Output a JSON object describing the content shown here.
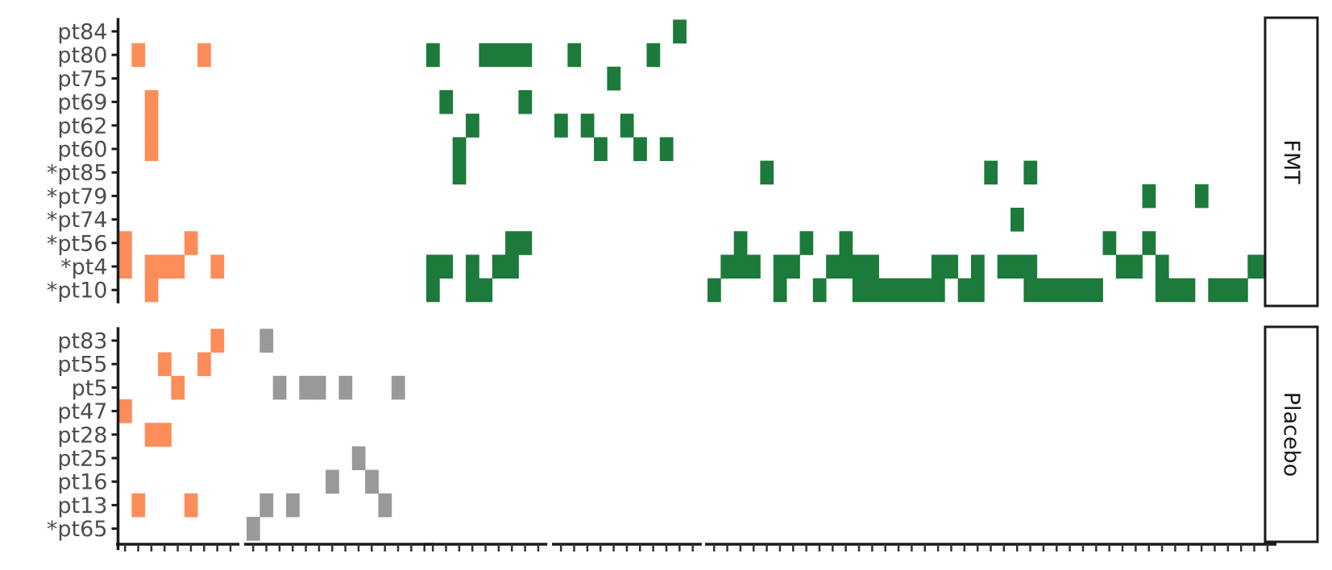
{
  "chart_data": {
    "type": "heatmap",
    "title": "",
    "xlabel": "",
    "ylabel": "",
    "colors": {
      "orange": "#FC8D59",
      "grey": "#999999",
      "green": "#1C7A3A",
      "axis": "#1a1a1a",
      "label": "#4d4d4d"
    },
    "x_blocks": [
      {
        "name": "block1",
        "columns": 9
      },
      {
        "name": "block2",
        "columns": 14
      },
      {
        "name": "block3",
        "columns": 9
      },
      {
        "name": "block4",
        "columns": 11
      },
      {
        "name": "block5",
        "columns": 43
      }
    ],
    "facets": [
      {
        "label": "FMT",
        "rows": [
          "pt84",
          "pt80",
          "pt75",
          "pt69",
          "pt62",
          "pt60",
          "*pt85",
          "*pt79",
          "*pt74",
          "*pt56",
          "*pt4",
          "*pt10"
        ],
        "cells": [
          {
            "row": "pt84",
            "block": 4,
            "col": 9,
            "color": "green"
          },
          {
            "row": "pt80",
            "block": 1,
            "col": 1,
            "color": "orange"
          },
          {
            "row": "pt80",
            "block": 1,
            "col": 6,
            "color": "orange"
          },
          {
            "row": "pt80",
            "block": 3,
            "col": 0,
            "color": "green"
          },
          {
            "row": "pt80",
            "block": 3,
            "col": 4,
            "color": "green"
          },
          {
            "row": "pt80",
            "block": 3,
            "col": 5,
            "color": "green"
          },
          {
            "row": "pt80",
            "block": 3,
            "col": 6,
            "color": "green"
          },
          {
            "row": "pt80",
            "block": 3,
            "col": 7,
            "color": "green"
          },
          {
            "row": "pt80",
            "block": 4,
            "col": 1,
            "color": "green"
          },
          {
            "row": "pt80",
            "block": 4,
            "col": 7,
            "color": "green"
          },
          {
            "row": "pt75",
            "block": 4,
            "col": 4,
            "color": "green"
          },
          {
            "row": "pt69",
            "block": 1,
            "col": 2,
            "color": "orange"
          },
          {
            "row": "pt69",
            "block": 3,
            "col": 1,
            "color": "green"
          },
          {
            "row": "pt69",
            "block": 3,
            "col": 7,
            "color": "green"
          },
          {
            "row": "pt62",
            "block": 1,
            "col": 2,
            "color": "orange"
          },
          {
            "row": "pt62",
            "block": 3,
            "col": 3,
            "color": "green"
          },
          {
            "row": "pt62",
            "block": 4,
            "col": 0,
            "color": "green"
          },
          {
            "row": "pt62",
            "block": 4,
            "col": 2,
            "color": "green"
          },
          {
            "row": "pt62",
            "block": 4,
            "col": 5,
            "color": "green"
          },
          {
            "row": "pt60",
            "block": 1,
            "col": 2,
            "color": "orange"
          },
          {
            "row": "pt60",
            "block": 3,
            "col": 2,
            "color": "green"
          },
          {
            "row": "pt60",
            "block": 4,
            "col": 3,
            "color": "green"
          },
          {
            "row": "pt60",
            "block": 4,
            "col": 6,
            "color": "green"
          },
          {
            "row": "pt60",
            "block": 4,
            "col": 8,
            "color": "green"
          },
          {
            "row": "*pt85",
            "block": 3,
            "col": 2,
            "color": "green"
          },
          {
            "row": "*pt85",
            "block": 5,
            "col": 4,
            "color": "green"
          },
          {
            "row": "*pt85",
            "block": 5,
            "col": 21,
            "color": "green"
          },
          {
            "row": "*pt85",
            "block": 5,
            "col": 24,
            "color": "green"
          },
          {
            "row": "*pt79",
            "block": 5,
            "col": 33,
            "color": "green"
          },
          {
            "row": "*pt79",
            "block": 5,
            "col": 37,
            "color": "green"
          },
          {
            "row": "*pt74",
            "block": 5,
            "col": 23,
            "color": "green"
          },
          {
            "row": "*pt56",
            "block": 1,
            "col": 0,
            "color": "orange"
          },
          {
            "row": "*pt56",
            "block": 1,
            "col": 5,
            "color": "orange"
          },
          {
            "row": "*pt56",
            "block": 3,
            "col": 6,
            "color": "green"
          },
          {
            "row": "*pt56",
            "block": 3,
            "col": 7,
            "color": "green"
          },
          {
            "row": "*pt56",
            "block": 5,
            "col": 2,
            "color": "green"
          },
          {
            "row": "*pt56",
            "block": 5,
            "col": 7,
            "color": "green"
          },
          {
            "row": "*pt56",
            "block": 5,
            "col": 10,
            "color": "green"
          },
          {
            "row": "*pt56",
            "block": 5,
            "col": 30,
            "color": "green"
          },
          {
            "row": "*pt56",
            "block": 5,
            "col": 33,
            "color": "green"
          },
          {
            "row": "*pt4",
            "block": 1,
            "col": 0,
            "color": "orange"
          },
          {
            "row": "*pt4",
            "block": 1,
            "col": 2,
            "color": "orange"
          },
          {
            "row": "*pt4",
            "block": 1,
            "col": 3,
            "color": "orange"
          },
          {
            "row": "*pt4",
            "block": 1,
            "col": 4,
            "color": "orange"
          },
          {
            "row": "*pt4",
            "block": 1,
            "col": 7,
            "color": "orange"
          },
          {
            "row": "*pt4",
            "block": 3,
            "col": 0,
            "color": "green"
          },
          {
            "row": "*pt4",
            "block": 3,
            "col": 1,
            "color": "green"
          },
          {
            "row": "*pt4",
            "block": 3,
            "col": 3,
            "color": "green"
          },
          {
            "row": "*pt4",
            "block": 3,
            "col": 5,
            "color": "green"
          },
          {
            "row": "*pt4",
            "block": 3,
            "col": 6,
            "color": "green"
          },
          {
            "row": "*pt4",
            "block": 5,
            "col": 1,
            "color": "green"
          },
          {
            "row": "*pt4",
            "block": 5,
            "col": 2,
            "color": "green"
          },
          {
            "row": "*pt4",
            "block": 5,
            "col": 3,
            "color": "green"
          },
          {
            "row": "*pt4",
            "block": 5,
            "col": 5,
            "color": "green"
          },
          {
            "row": "*pt4",
            "block": 5,
            "col": 6,
            "color": "green"
          },
          {
            "row": "*pt4",
            "block": 5,
            "col": 9,
            "color": "green"
          },
          {
            "row": "*pt4",
            "block": 5,
            "col": 10,
            "color": "green"
          },
          {
            "row": "*pt4",
            "block": 5,
            "col": 11,
            "color": "green"
          },
          {
            "row": "*pt4",
            "block": 5,
            "col": 12,
            "color": "green"
          },
          {
            "row": "*pt4",
            "block": 5,
            "col": 17,
            "color": "green"
          },
          {
            "row": "*pt4",
            "block": 5,
            "col": 18,
            "color": "green"
          },
          {
            "row": "*pt4",
            "block": 5,
            "col": 20,
            "color": "green"
          },
          {
            "row": "*pt4",
            "block": 5,
            "col": 22,
            "color": "green"
          },
          {
            "row": "*pt4",
            "block": 5,
            "col": 23,
            "color": "green"
          },
          {
            "row": "*pt4",
            "block": 5,
            "col": 24,
            "color": "green"
          },
          {
            "row": "*pt4",
            "block": 5,
            "col": 31,
            "color": "green"
          },
          {
            "row": "*pt4",
            "block": 5,
            "col": 32,
            "color": "green"
          },
          {
            "row": "*pt4",
            "block": 5,
            "col": 34,
            "color": "green"
          },
          {
            "row": "*pt4",
            "block": 5,
            "col": 41,
            "color": "green"
          },
          {
            "row": "*pt4",
            "block": 5,
            "col": 42,
            "color": "green"
          },
          {
            "row": "*pt10",
            "block": 1,
            "col": 2,
            "color": "orange"
          },
          {
            "row": "*pt10",
            "block": 3,
            "col": 0,
            "color": "green"
          },
          {
            "row": "*pt10",
            "block": 3,
            "col": 3,
            "color": "green"
          },
          {
            "row": "*pt10",
            "block": 3,
            "col": 4,
            "color": "green"
          },
          {
            "row": "*pt10",
            "block": 5,
            "col": 0,
            "color": "green"
          },
          {
            "row": "*pt10",
            "block": 5,
            "col": 5,
            "color": "green"
          },
          {
            "row": "*pt10",
            "block": 5,
            "col": 8,
            "color": "green"
          },
          {
            "row": "*pt10",
            "block": 5,
            "col": 11,
            "color": "green"
          },
          {
            "row": "*pt10",
            "block": 5,
            "col": 12,
            "color": "green"
          },
          {
            "row": "*pt10",
            "block": 5,
            "col": 13,
            "color": "green"
          },
          {
            "row": "*pt10",
            "block": 5,
            "col": 14,
            "color": "green"
          },
          {
            "row": "*pt10",
            "block": 5,
            "col": 15,
            "color": "green"
          },
          {
            "row": "*pt10",
            "block": 5,
            "col": 16,
            "color": "green"
          },
          {
            "row": "*pt10",
            "block": 5,
            "col": 17,
            "color": "green"
          },
          {
            "row": "*pt10",
            "block": 5,
            "col": 19,
            "color": "green"
          },
          {
            "row": "*pt10",
            "block": 5,
            "col": 20,
            "color": "green"
          },
          {
            "row": "*pt10",
            "block": 5,
            "col": 24,
            "color": "green"
          },
          {
            "row": "*pt10",
            "block": 5,
            "col": 25,
            "color": "green"
          },
          {
            "row": "*pt10",
            "block": 5,
            "col": 26,
            "color": "green"
          },
          {
            "row": "*pt10",
            "block": 5,
            "col": 27,
            "color": "green"
          },
          {
            "row": "*pt10",
            "block": 5,
            "col": 28,
            "color": "green"
          },
          {
            "row": "*pt10",
            "block": 5,
            "col": 29,
            "color": "green"
          },
          {
            "row": "*pt10",
            "block": 5,
            "col": 34,
            "color": "green"
          },
          {
            "row": "*pt10",
            "block": 5,
            "col": 35,
            "color": "green"
          },
          {
            "row": "*pt10",
            "block": 5,
            "col": 36,
            "color": "green"
          },
          {
            "row": "*pt10",
            "block": 5,
            "col": 38,
            "color": "green"
          },
          {
            "row": "*pt10",
            "block": 5,
            "col": 39,
            "color": "green"
          },
          {
            "row": "*pt10",
            "block": 5,
            "col": 40,
            "color": "green"
          }
        ]
      },
      {
        "label": "Placebo",
        "rows": [
          "pt83",
          "pt55",
          "pt5",
          "pt47",
          "pt28",
          "pt25",
          "pt16",
          "pt13",
          "*pt65"
        ],
        "cells": [
          {
            "row": "pt83",
            "block": 1,
            "col": 7,
            "color": "orange"
          },
          {
            "row": "pt83",
            "block": 2,
            "col": 1,
            "color": "grey"
          },
          {
            "row": "pt55",
            "block": 1,
            "col": 3,
            "color": "orange"
          },
          {
            "row": "pt55",
            "block": 1,
            "col": 6,
            "color": "orange"
          },
          {
            "row": "pt5",
            "block": 1,
            "col": 4,
            "color": "orange"
          },
          {
            "row": "pt5",
            "block": 2,
            "col": 2,
            "color": "grey"
          },
          {
            "row": "pt5",
            "block": 2,
            "col": 4,
            "color": "grey"
          },
          {
            "row": "pt5",
            "block": 2,
            "col": 5,
            "color": "grey"
          },
          {
            "row": "pt5",
            "block": 2,
            "col": 7,
            "color": "grey"
          },
          {
            "row": "pt5",
            "block": 2,
            "col": 11,
            "color": "grey"
          },
          {
            "row": "pt47",
            "block": 1,
            "col": 0,
            "color": "orange"
          },
          {
            "row": "pt28",
            "block": 1,
            "col": 2,
            "color": "orange"
          },
          {
            "row": "pt28",
            "block": 1,
            "col": 3,
            "color": "orange"
          },
          {
            "row": "pt25",
            "block": 2,
            "col": 8,
            "color": "grey"
          },
          {
            "row": "pt16",
            "block": 2,
            "col": 6,
            "color": "grey"
          },
          {
            "row": "pt16",
            "block": 2,
            "col": 9,
            "color": "grey"
          },
          {
            "row": "pt13",
            "block": 1,
            "col": 1,
            "color": "orange"
          },
          {
            "row": "pt13",
            "block": 1,
            "col": 5,
            "color": "orange"
          },
          {
            "row": "pt13",
            "block": 2,
            "col": 1,
            "color": "grey"
          },
          {
            "row": "pt13",
            "block": 2,
            "col": 3,
            "color": "grey"
          },
          {
            "row": "pt13",
            "block": 2,
            "col": 10,
            "color": "grey"
          },
          {
            "row": "*pt65",
            "block": 2,
            "col": 0,
            "color": "grey"
          }
        ]
      }
    ]
  }
}
